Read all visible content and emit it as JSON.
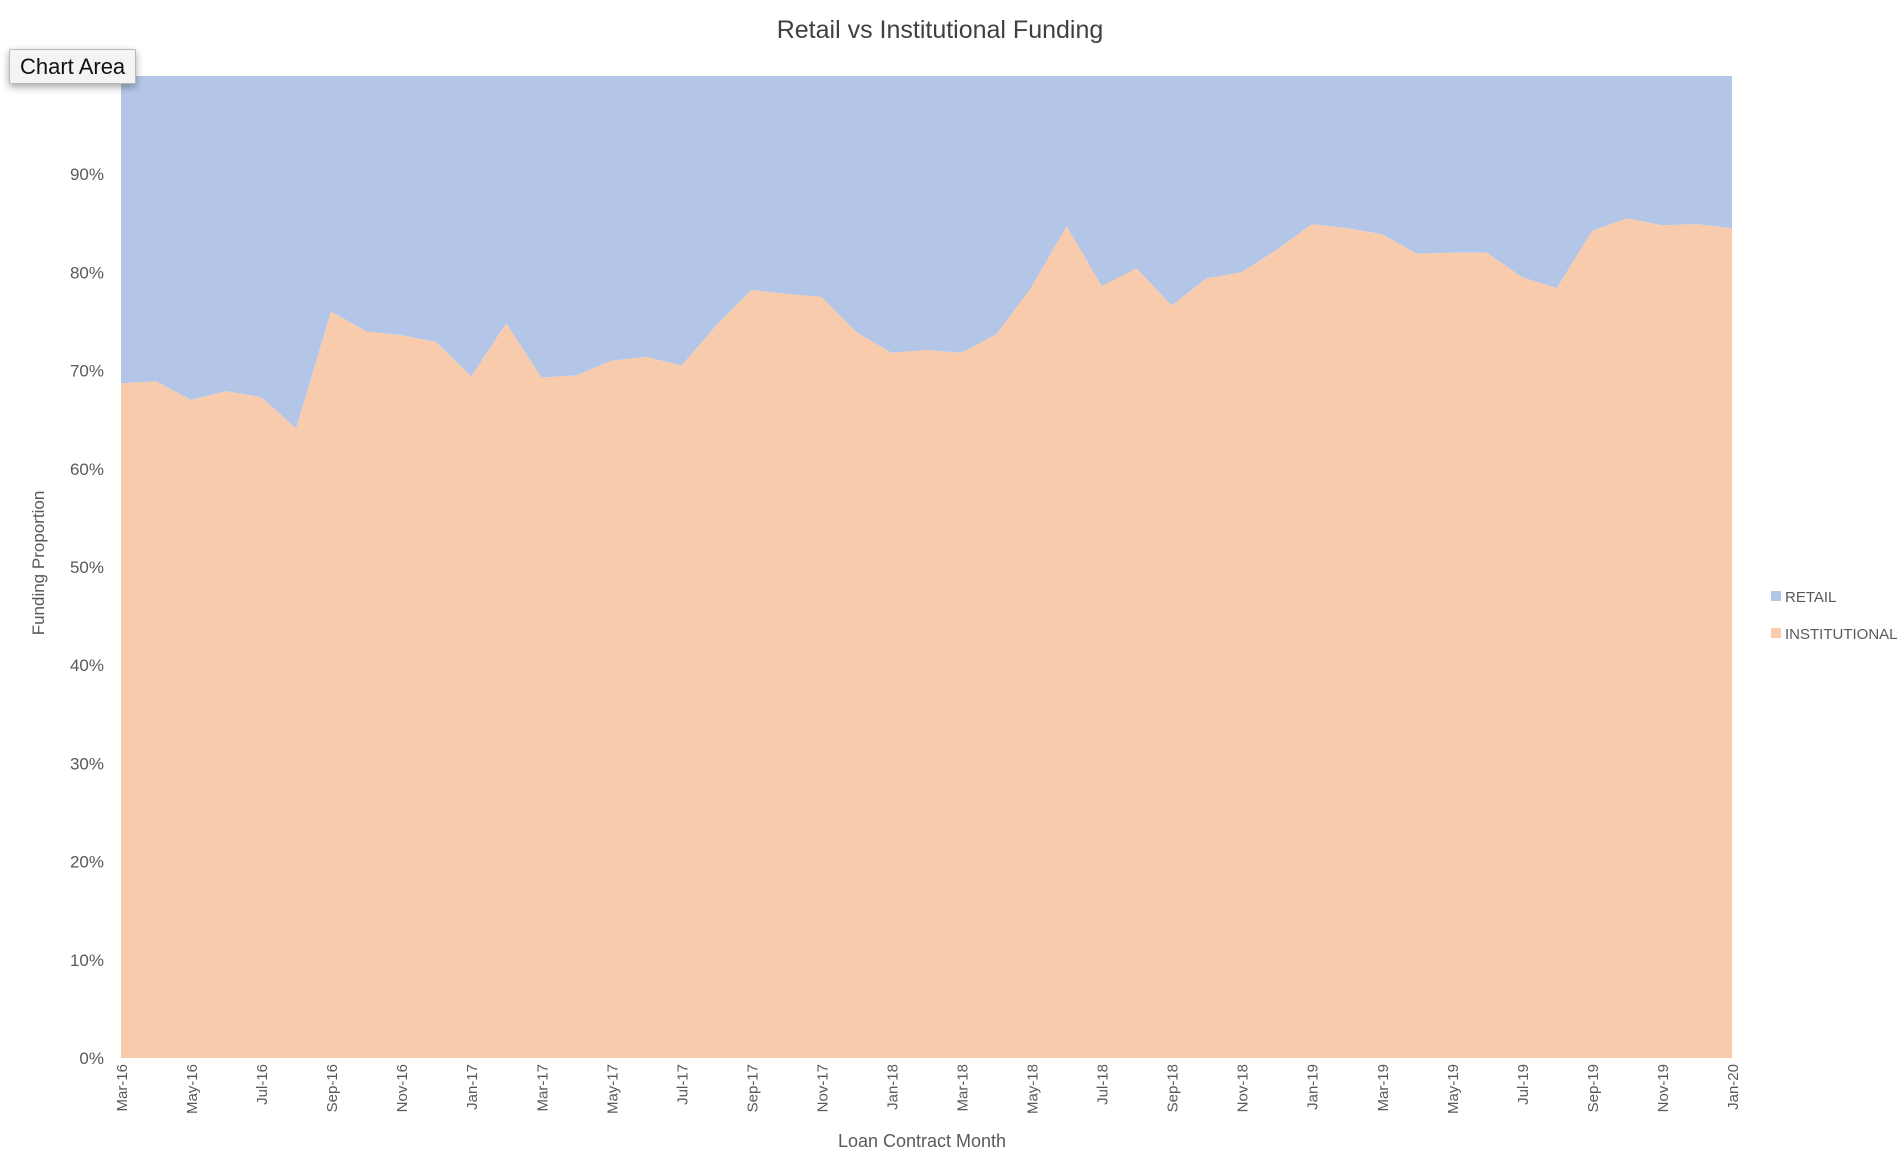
{
  "tooltip": "Chart Area",
  "colors": {
    "retail": "#b4c6e7",
    "institutional": "#f8cbad",
    "text": "#595959"
  },
  "chart_data": {
    "type": "area",
    "stacked": "percent",
    "title": "Retail vs Institutional Funding",
    "xlabel": "Loan Contract Month",
    "ylabel": "Funding Proportion",
    "ylim": [
      0,
      1
    ],
    "yticks": [
      "0%",
      "10%",
      "20%",
      "30%",
      "40%",
      "50%",
      "60%",
      "70%",
      "80%",
      "90%"
    ],
    "grid": false,
    "legend": "right",
    "categories": [
      "Mar-16",
      "Apr-16",
      "May-16",
      "Jun-16",
      "Jul-16",
      "Aug-16",
      "Sep-16",
      "Oct-16",
      "Nov-16",
      "Dec-16",
      "Jan-17",
      "Feb-17",
      "Mar-17",
      "Apr-17",
      "May-17",
      "Jun-17",
      "Jul-17",
      "Aug-17",
      "Sep-17",
      "Oct-17",
      "Nov-17",
      "Dec-17",
      "Jan-18",
      "Feb-18",
      "Mar-18",
      "Apr-18",
      "May-18",
      "Jun-18",
      "Jul-18",
      "Aug-18",
      "Sep-18",
      "Oct-18",
      "Nov-18",
      "Dec-18",
      "Jan-19",
      "Feb-19",
      "Mar-19",
      "Apr-19",
      "May-19",
      "Jun-19",
      "Jul-19",
      "Aug-19",
      "Sep-19",
      "Oct-19",
      "Nov-19",
      "Dec-19",
      "Jan-20"
    ],
    "tick_labels": [
      "Mar-16",
      "May-16",
      "Jul-16",
      "Sep-16",
      "Nov-16",
      "Jan-17",
      "Mar-17",
      "May-17",
      "Jul-17",
      "Sep-17",
      "Nov-17",
      "Jan-18",
      "Mar-18",
      "May-18",
      "Jul-18",
      "Sep-18",
      "Nov-18",
      "Jan-19",
      "Mar-19",
      "May-19",
      "Jul-19",
      "Sep-19",
      "Nov-19",
      "Jan-20"
    ],
    "series": [
      {
        "name": "INSTITUTIONAL",
        "values": [
          0.687,
          0.689,
          0.67,
          0.679,
          0.673,
          0.641,
          0.76,
          0.74,
          0.736,
          0.729,
          0.694,
          0.748,
          0.693,
          0.695,
          0.71,
          0.714,
          0.705,
          0.746,
          0.782,
          0.778,
          0.775,
          0.739,
          0.718,
          0.721,
          0.718,
          0.737,
          0.785,
          0.847,
          0.786,
          0.804,
          0.766,
          0.794,
          0.8,
          0.823,
          0.849,
          0.845,
          0.839,
          0.819,
          0.82,
          0.82,
          0.795,
          0.784,
          0.842,
          0.855,
          0.848,
          0.849,
          0.845
        ]
      },
      {
        "name": "RETAIL",
        "values": [
          0.313,
          0.311,
          0.33,
          0.321,
          0.327,
          0.359,
          0.24,
          0.26,
          0.264,
          0.271,
          0.306,
          0.252,
          0.307,
          0.305,
          0.29,
          0.286,
          0.295,
          0.254,
          0.218,
          0.222,
          0.225,
          0.261,
          0.282,
          0.279,
          0.282,
          0.263,
          0.215,
          0.153,
          0.214,
          0.196,
          0.234,
          0.206,
          0.2,
          0.177,
          0.151,
          0.155,
          0.161,
          0.181,
          0.18,
          0.18,
          0.205,
          0.216,
          0.158,
          0.145,
          0.152,
          0.151,
          0.155
        ]
      }
    ]
  }
}
